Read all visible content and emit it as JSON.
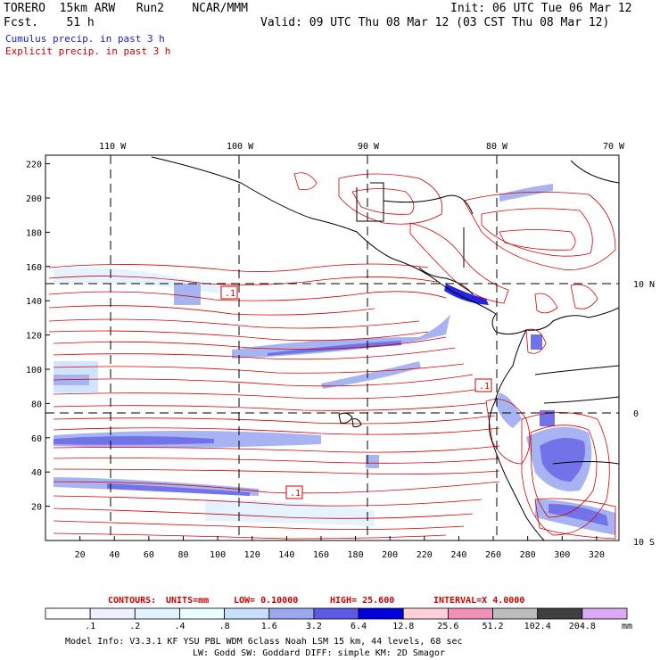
{
  "header": {
    "line1_left": "TORERO  15km ARW   Run2    NCAR/MMM",
    "line1_right": "Init: 06 UTC Tue 06 Mar 12",
    "line2_left": "Fcst.    51 h",
    "line2_right": "Valid: 09 UTC Thu 08 Mar 12 (03 CST Thu 08 Mar 12)",
    "cumulus_label": "Cumulus precip. in past 3 h",
    "cumulus_color": "#1a1acc",
    "explicit_label": "Explicit precip. in past 3 h",
    "explicit_color": "#cc0000"
  },
  "map": {
    "lon_labels": [
      "110 W",
      "100 W",
      "90 W",
      "80 W",
      "70 W"
    ],
    "lat_labels": [
      "10 N",
      "0",
      "10 S"
    ],
    "y_ticks": [
      "220",
      "200",
      "180",
      "160",
      "140",
      "120",
      "100",
      "80",
      "60",
      "40",
      "20"
    ],
    "x_ticks": [
      "20",
      "40",
      "60",
      "80",
      "100",
      "120",
      "140",
      "160",
      "180",
      "200",
      "220",
      "240",
      "260",
      "280",
      "300",
      "320"
    ],
    "y_range": [
      0,
      225
    ],
    "x_range": [
      0,
      333
    ],
    "contour_markers": [
      ".1",
      ".1",
      ".1"
    ]
  },
  "contours_note": {
    "prefix": "CONTOURS:",
    "units": "UNITS=mm",
    "low": "LOW= 0.10000",
    "high": "HIGH=  25.600",
    "interval": "INTERVAL=X  4.0000",
    "color": "#cc0000"
  },
  "colorbar": {
    "labels": [
      ".1",
      ".2",
      ".4",
      ".8",
      "1.6",
      "3.2",
      "6.4",
      "12.8",
      "25.6",
      "51.2",
      "102.4",
      "204.8"
    ],
    "units": "mm",
    "colors": [
      "#ffffff",
      "#eef0ff",
      "#e0f2ff",
      "#ecffff",
      "#c8e0ff",
      "#9aa8f0",
      "#5a5ae6",
      "#0000dc",
      "#ffd0d8",
      "#f090b8",
      "#bcbcbc",
      "#404040",
      "#dcaaf2"
    ]
  },
  "footer": {
    "line1": "Model Info: V3.3.1   KF    YSU PBL  WDM 6class  Noah LSM  15 km,   44 levels,   68 sec",
    "line2": "LW: Godd SW: Goddard DIFF: simple KM: 2D Smagor"
  }
}
